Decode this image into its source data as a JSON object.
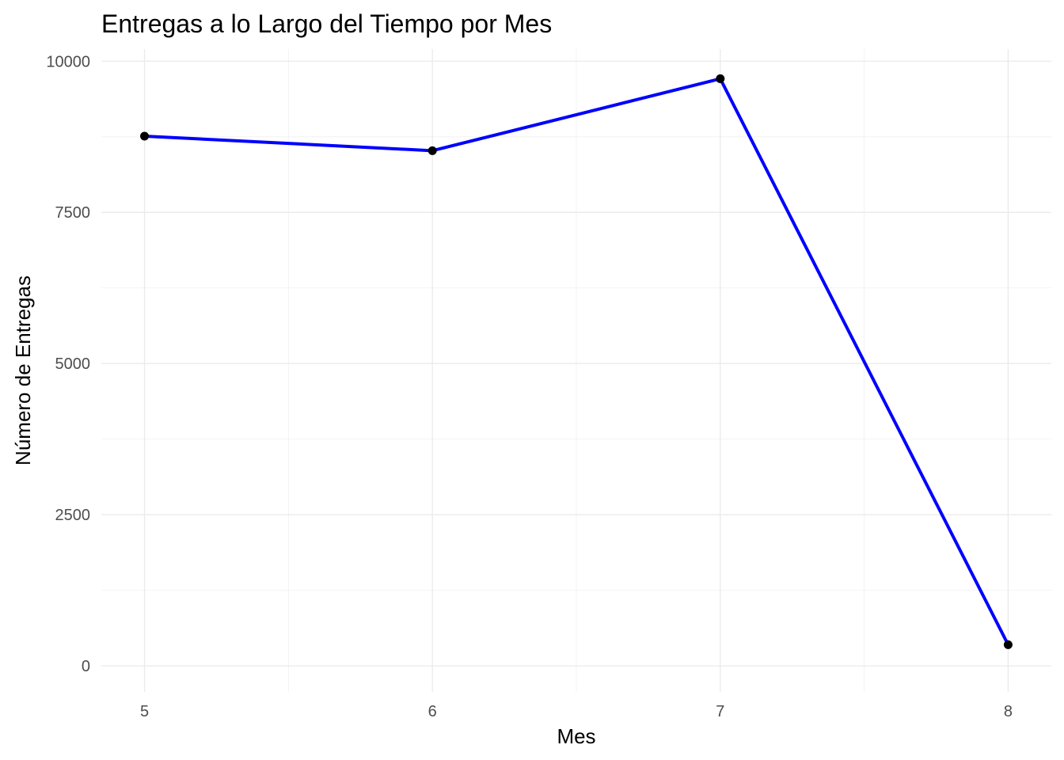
{
  "chart_data": {
    "type": "line",
    "title": "Entregas a lo Largo del Tiempo por Mes",
    "xlabel": "Mes",
    "ylabel": "Número de Entregas",
    "x": [
      5,
      6,
      7,
      8
    ],
    "series": [
      {
        "values": [
          8760,
          8520,
          9710,
          350
        ],
        "color": "#0000ff",
        "point_color": "#000000"
      }
    ],
    "xlim": [
      4.85,
      8.15
    ],
    "ylim": [
      -430,
      10200
    ],
    "x_ticks": [
      5,
      6,
      7,
      8
    ],
    "y_ticks": [
      0,
      2500,
      5000,
      7500,
      10000
    ],
    "grid": true,
    "legend": "none"
  }
}
